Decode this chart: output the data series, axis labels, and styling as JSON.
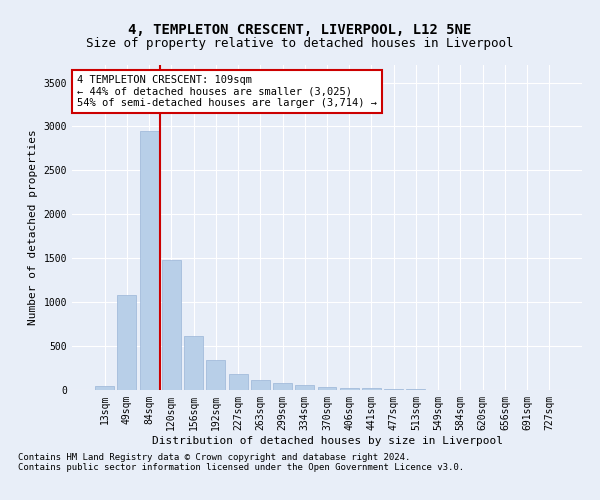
{
  "title": "4, TEMPLETON CRESCENT, LIVERPOOL, L12 5NE",
  "subtitle": "Size of property relative to detached houses in Liverpool",
  "xlabel": "Distribution of detached houses by size in Liverpool",
  "ylabel": "Number of detached properties",
  "footnote1": "Contains HM Land Registry data © Crown copyright and database right 2024.",
  "footnote2": "Contains public sector information licensed under the Open Government Licence v3.0.",
  "categories": [
    "13sqm",
    "49sqm",
    "84sqm",
    "120sqm",
    "156sqm",
    "192sqm",
    "227sqm",
    "263sqm",
    "299sqm",
    "334sqm",
    "370sqm",
    "406sqm",
    "441sqm",
    "477sqm",
    "513sqm",
    "549sqm",
    "584sqm",
    "620sqm",
    "656sqm",
    "691sqm",
    "727sqm"
  ],
  "values": [
    50,
    1080,
    2950,
    1480,
    610,
    340,
    185,
    115,
    85,
    55,
    30,
    25,
    18,
    12,
    8,
    5,
    5,
    4,
    3,
    2,
    2
  ],
  "bar_color": "#b8cfe8",
  "bar_edge_color": "#9ab5d8",
  "vline_x_index": 2.5,
  "vline_color": "#cc0000",
  "annotation_text": "4 TEMPLETON CRESCENT: 109sqm\n← 44% of detached houses are smaller (3,025)\n54% of semi-detached houses are larger (3,714) →",
  "annotation_box_color": "#ffffff",
  "annotation_box_edge": "#cc0000",
  "ylim": [
    0,
    3700
  ],
  "yticks": [
    0,
    500,
    1000,
    1500,
    2000,
    2500,
    3000,
    3500
  ],
  "bg_color": "#e8eef8",
  "plot_bg_color": "#e8eef8",
  "grid_color": "#ffffff",
  "title_fontsize": 10,
  "subtitle_fontsize": 9,
  "axis_label_fontsize": 8,
  "tick_fontsize": 7,
  "annotation_fontsize": 7.5,
  "footnote_fontsize": 6.5
}
